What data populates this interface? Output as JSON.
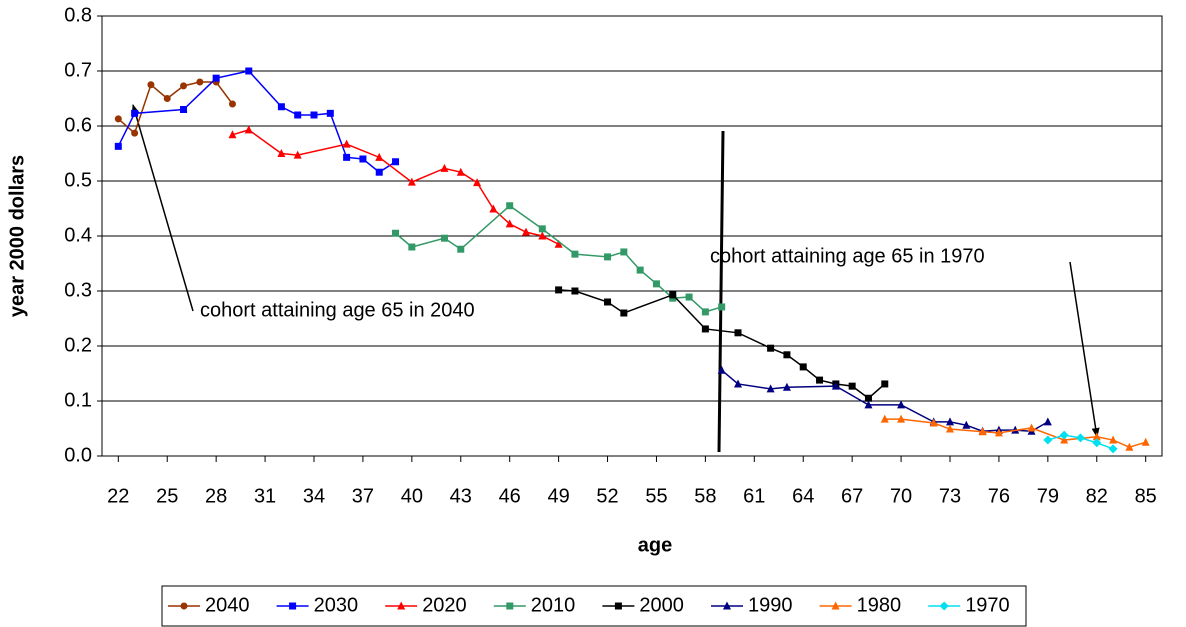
{
  "chart_data": {
    "type": "line",
    "x_label": "age",
    "y_label": "year 2000 dollars",
    "xlim": [
      21,
      86
    ],
    "xticks": [
      22,
      25,
      28,
      31,
      34,
      37,
      40,
      43,
      46,
      49,
      52,
      55,
      58,
      61,
      64,
      67,
      70,
      73,
      76,
      79,
      82,
      85
    ],
    "ylim": [
      0,
      0.8
    ],
    "yticks": [
      {
        "value": 0,
        "label": "0.0"
      },
      0.1,
      0.2,
      0.3,
      0.4,
      0.5,
      0.6,
      0.7,
      0.8
    ],
    "grid": true,
    "legend": "bottom",
    "annotations": [
      {
        "text": "cohort attaining age 65 in 2040"
      },
      {
        "text": "cohort attaining age 65 in 1970"
      }
    ],
    "series": [
      {
        "name": "2040",
        "color": "#993300",
        "marker": "circle",
        "x": [
          22,
          23,
          24,
          25,
          26,
          27,
          28,
          29
        ],
        "values": [
          0.613,
          0.587,
          0.675,
          0.65,
          0.673,
          0.68,
          0.68,
          0.64
        ]
      },
      {
        "name": "2030",
        "color": "#0000ff",
        "marker": "square",
        "x": [
          22,
          23,
          26,
          28,
          30,
          32,
          33,
          34,
          35,
          36,
          37,
          38,
          39
        ],
        "values": [
          0.563,
          0.623,
          0.63,
          0.687,
          0.7,
          0.635,
          0.62,
          0.62,
          0.623,
          0.543,
          0.54,
          0.516,
          0.535
        ]
      },
      {
        "name": "2020",
        "color": "#ff0000",
        "marker": "triangle",
        "x": [
          29,
          30,
          32,
          33,
          36,
          38,
          40,
          42,
          43,
          44,
          45,
          46,
          47,
          48,
          49
        ],
        "values": [
          0.584,
          0.593,
          0.55,
          0.547,
          0.567,
          0.543,
          0.498,
          0.523,
          0.516,
          0.497,
          0.449,
          0.422,
          0.407,
          0.4,
          0.385
        ]
      },
      {
        "name": "2010",
        "color": "#339966",
        "marker": "square",
        "x": [
          39,
          40,
          42,
          43,
          46,
          48,
          50,
          52,
          53,
          54,
          55,
          56,
          57,
          58,
          59
        ],
        "values": [
          0.405,
          0.38,
          0.396,
          0.376,
          0.455,
          0.413,
          0.367,
          0.362,
          0.371,
          0.338,
          0.313,
          0.287,
          0.289,
          0.262,
          0.271
        ]
      },
      {
        "name": "2000",
        "color": "#000000",
        "marker": "square",
        "x": [
          49,
          50,
          52,
          53,
          56,
          58,
          60,
          62,
          63,
          64,
          65,
          66,
          67,
          68,
          69
        ],
        "values": [
          0.302,
          0.3,
          0.28,
          0.26,
          0.293,
          0.231,
          0.224,
          0.196,
          0.184,
          0.162,
          0.138,
          0.131,
          0.127,
          0.105,
          0.131
        ]
      },
      {
        "name": "1990",
        "color": "#000080",
        "marker": "triangle",
        "x": [
          59,
          60,
          62,
          63,
          66,
          68,
          70,
          72,
          73,
          74,
          75,
          76,
          77,
          78,
          79
        ],
        "values": [
          0.156,
          0.131,
          0.122,
          0.125,
          0.127,
          0.093,
          0.093,
          0.062,
          0.062,
          0.056,
          0.045,
          0.047,
          0.047,
          0.045,
          0.062
        ]
      },
      {
        "name": "1980",
        "color": "#ff6600",
        "marker": "triangle",
        "x": [
          69,
          70,
          72,
          73,
          75,
          76,
          78,
          80,
          82,
          83,
          84,
          85
        ],
        "values": [
          0.067,
          0.067,
          0.06,
          0.049,
          0.044,
          0.042,
          0.051,
          0.029,
          0.035,
          0.029,
          0.016,
          0.025
        ]
      },
      {
        "name": "1970",
        "color": "#00e0f0",
        "marker": "diamond",
        "x": [
          79,
          80,
          81,
          82,
          83
        ],
        "values": [
          0.029,
          0.038,
          0.033,
          0.024,
          0.013
        ]
      }
    ]
  }
}
